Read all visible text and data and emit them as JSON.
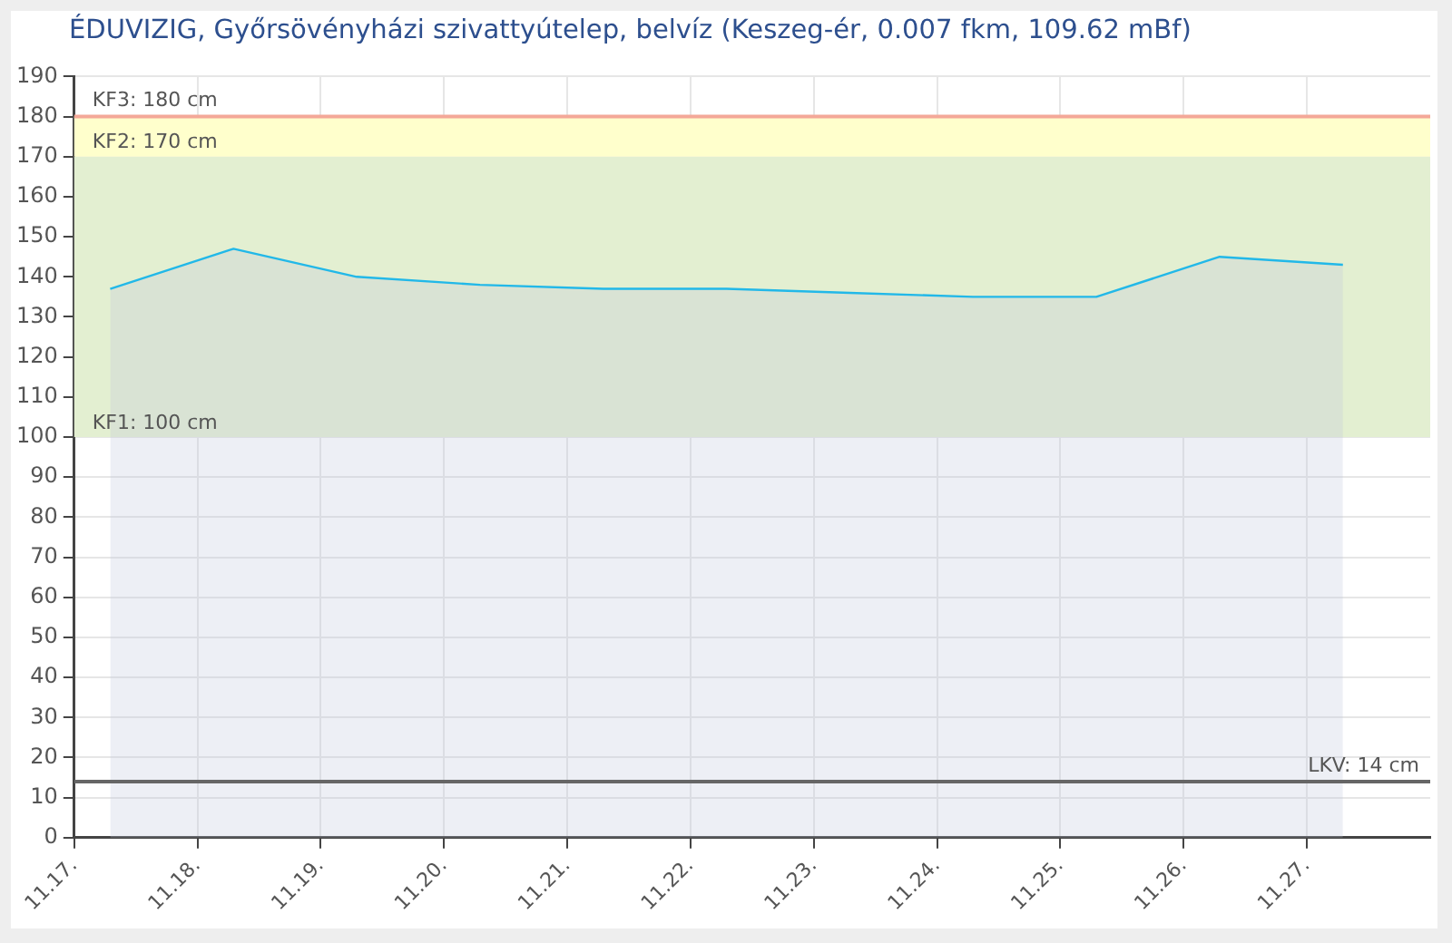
{
  "chart_data": {
    "type": "area",
    "title": "ÉDUVIZIG, Győrsövényházi szivattyútelep, belvíz (Keszeg-ér, 0.007 fkm, 109.62 mBf)",
    "x": [
      "--11-17T07:00",
      "--11-18T07:00",
      "--11-19T07:00",
      "--11-20T07:00",
      "--11-21T07:00",
      "--11-22T07:00",
      "--11-23T07:00",
      "--11-24T07:00",
      "--11-25T07:00",
      "--11-26T07:00",
      "--11-27T07:00"
    ],
    "series": [
      {
        "color": "#22b8e8",
        "values": [
          137,
          147,
          140,
          138,
          137,
          137,
          136,
          135,
          135,
          145,
          143
        ]
      }
    ],
    "xlim": [
      "--11-17",
      "--11-28"
    ],
    "xticks": [
      {
        "value": "--11-17",
        "label": "11.17."
      },
      {
        "value": "--11-18",
        "label": "11.18."
      },
      {
        "value": "--11-19",
        "label": "11.19."
      },
      {
        "value": "--11-20",
        "label": "11.20."
      },
      {
        "value": "--11-21",
        "label": "11.21."
      },
      {
        "value": "--11-22",
        "label": "11.22."
      },
      {
        "value": "--11-23",
        "label": "11.23."
      },
      {
        "value": "--11-24",
        "label": "11.24."
      },
      {
        "value": "--11-25",
        "label": "11.25."
      },
      {
        "value": "--11-26",
        "label": "11.26."
      },
      {
        "value": "--11-27",
        "label": "11.27."
      }
    ],
    "ylim": [
      0,
      190
    ],
    "yticks": [
      0,
      10,
      20,
      30,
      40,
      50,
      60,
      70,
      80,
      90,
      100,
      110,
      120,
      130,
      140,
      150,
      160,
      170,
      180,
      190
    ],
    "bands": [
      {
        "axis": "y",
        "from": 100,
        "to": 170,
        "label": "KF1: 100 cm",
        "color": "#e3efd1"
      },
      {
        "axis": "y",
        "from": 170,
        "to": 180,
        "label": "KF2: 170 cm",
        "color": "#ffffcc"
      }
    ],
    "ref_lines": [
      {
        "axis": "y",
        "value": 180,
        "label": "KF3: 180 cm",
        "color": "#f4a898"
      },
      {
        "axis": "y",
        "value": 14,
        "label": "LKV: 14 cm",
        "color": "#666666"
      }
    ],
    "grid": true,
    "legend": false,
    "marker": "none",
    "line_style": "solid"
  }
}
